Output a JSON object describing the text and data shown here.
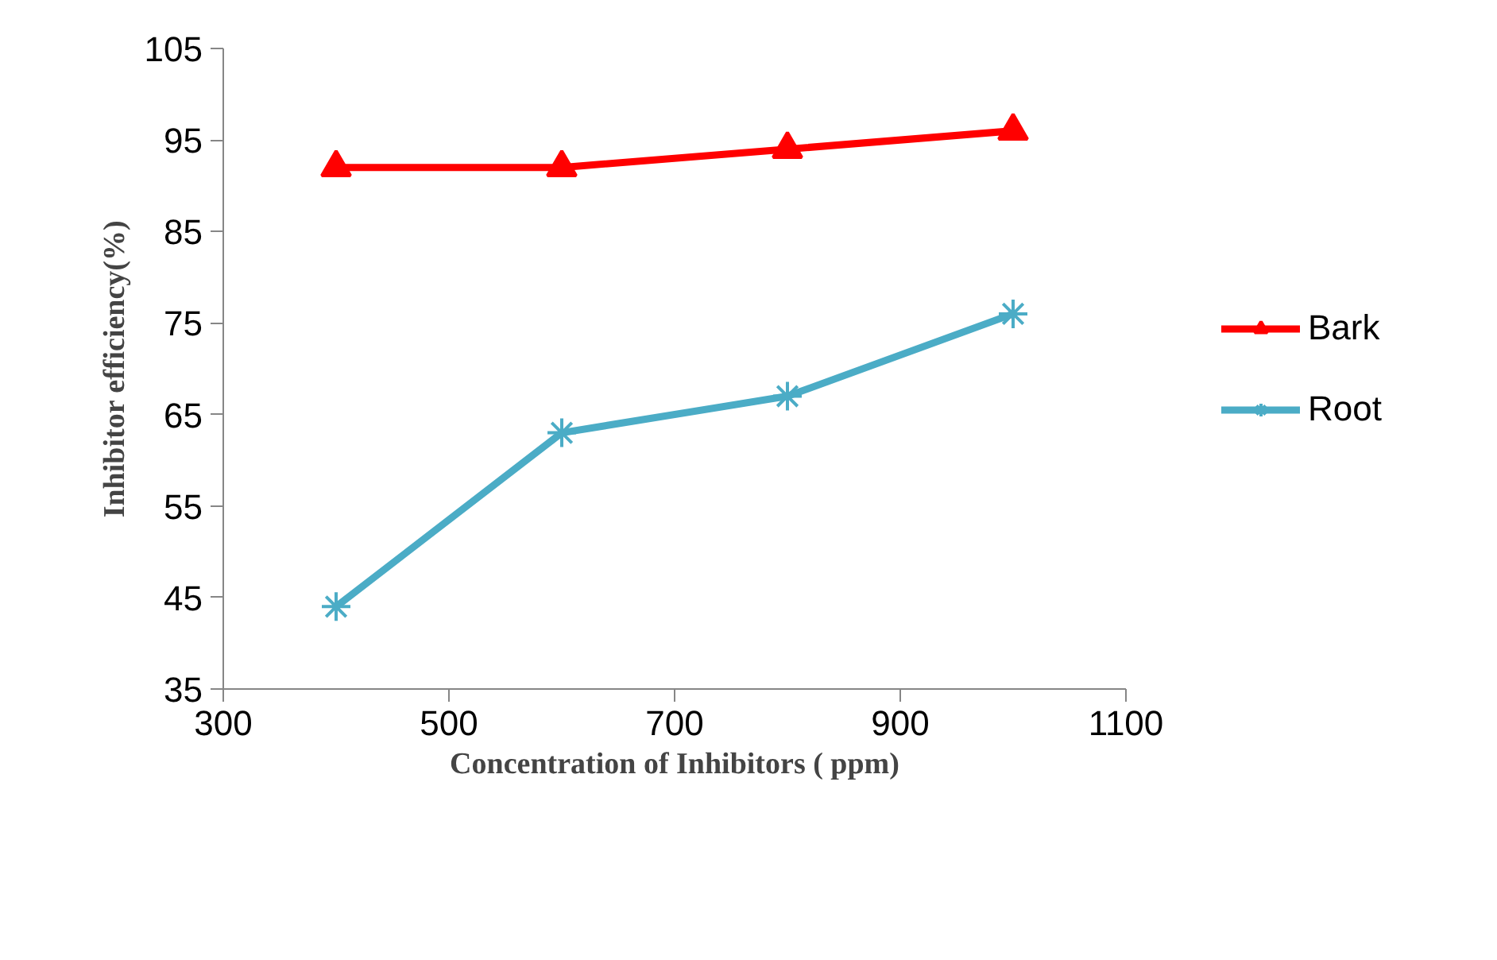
{
  "chart_data": {
    "type": "line",
    "xlabel": "Concentration of Inhibitors ( ppm)",
    "ylabel": "Inhibitor efficiency(%)",
    "x": [
      400,
      600,
      800,
      1000
    ],
    "series": [
      {
        "name": "Bark",
        "color": "#ff0000",
        "marker": "triangle",
        "values": [
          92,
          92,
          94,
          96
        ]
      },
      {
        "name": "Root",
        "color": "#4bacc6",
        "marker": "cross",
        "values": [
          44,
          63,
          67,
          76
        ]
      }
    ],
    "xlim": [
      300,
      1100
    ],
    "xticks": [
      300,
      500,
      700,
      900,
      1100
    ],
    "ylim": [
      35,
      105
    ],
    "yticks": [
      35,
      45,
      55,
      65,
      75,
      85,
      95,
      105
    ],
    "legend": "right",
    "grid": false,
    "line_style": "solid"
  }
}
